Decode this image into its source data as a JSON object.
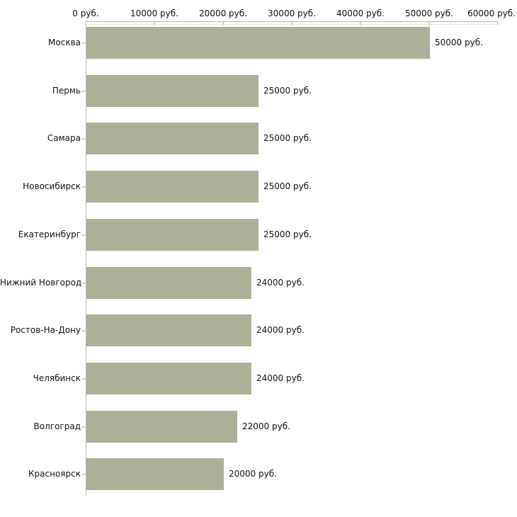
{
  "chart_data": {
    "type": "bar",
    "orientation": "horizontal",
    "title": "",
    "xlabel": "",
    "ylabel": "",
    "unit": "руб.",
    "categories": [
      "Москва",
      "Пермь",
      "Самара",
      "Новосибирск",
      "Екатеринбург",
      "Нижний Новгород",
      "Ростов-На-Дону",
      "Челябинск",
      "Волгоград",
      "Красноярск"
    ],
    "values": [
      50000,
      25000,
      25000,
      25000,
      25000,
      24000,
      24000,
      24000,
      22000,
      20000
    ],
    "value_labels": [
      "50000 руб.",
      "25000 руб.",
      "25000 руб.",
      "25000 руб.",
      "25000 руб.",
      "24000 руб.",
      "24000 руб.",
      "24000 руб.",
      "22000 руб.",
      "20000 руб."
    ],
    "x_ticks": [
      "0 руб.",
      "10000 руб.",
      "20000 руб.",
      "30000 руб.",
      "40000 руб.",
      "50000 руб.",
      "60000 руб."
    ],
    "xlim": [
      0,
      60000
    ],
    "grid": false,
    "legend": false,
    "colors": {
      "bar_fill": "#aab196",
      "axis_line": "#b5b5b1",
      "axis_line_light": "#e7e7d9",
      "tick_mark": "#d8dabc",
      "text": "#111111",
      "background": "#ffffff"
    }
  }
}
